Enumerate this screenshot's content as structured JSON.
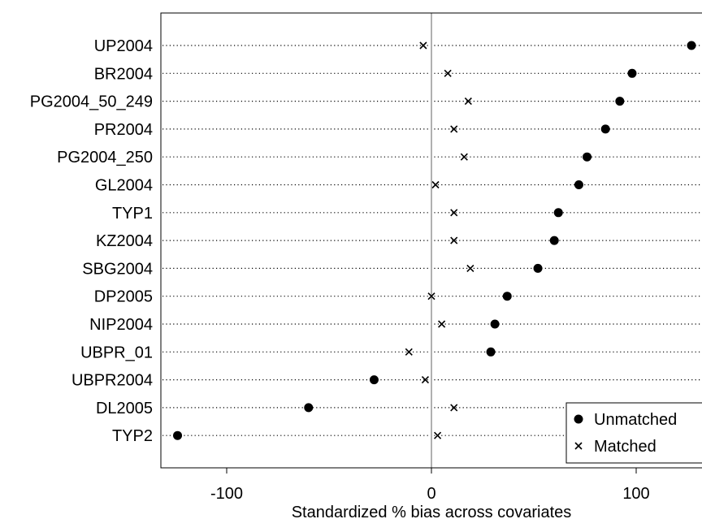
{
  "chart_data": {
    "type": "scatter",
    "subtype": "dot-plot",
    "xlabel": "Standardized % bias across covariates",
    "ylabel": "",
    "xlim": [
      -133,
      133
    ],
    "xticks": [
      -100,
      0,
      100
    ],
    "xtick_labels": [
      "-100",
      "0",
      "100"
    ],
    "reference_line_x": 0,
    "grid": "horizontal dotted",
    "legend_position": "bottom-right",
    "categories": [
      "UP2004",
      "BR2004",
      "PG2004_50_249",
      "PR2004",
      "PG2004_250",
      "GL2004",
      "TYP1",
      "KZ2004",
      "SBG2004",
      "DP2005",
      "NIP2004",
      "UBPR_01",
      "UBPR2004",
      "DL2005",
      "TYP2"
    ],
    "series": [
      {
        "name": "Unmatched",
        "marker": "filled-circle",
        "values": [
          127,
          98,
          92,
          85,
          76,
          72,
          62,
          60,
          52,
          37,
          31,
          29,
          -28,
          -60,
          -124
        ]
      },
      {
        "name": "Matched",
        "marker": "x",
        "values": [
          -4,
          8,
          18,
          11,
          16,
          2,
          11,
          11,
          19,
          0,
          5,
          -11,
          -3,
          11,
          3
        ]
      }
    ]
  }
}
